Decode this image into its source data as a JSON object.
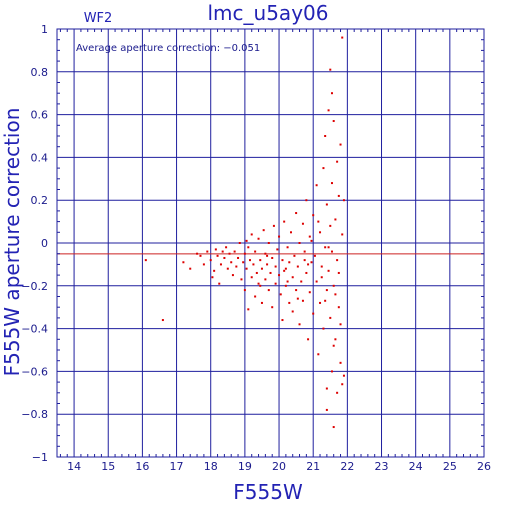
{
  "chart_data": {
    "type": "scatter",
    "title": "lmc_u5ay06",
    "panel_label": "WF2",
    "annotation": "Average aperture correction: −0.051",
    "xlabel": "F555W",
    "ylabel": "F555W aperture correction",
    "xlim": [
      13.5,
      26
    ],
    "ylim": [
      -1,
      1
    ],
    "xticks": [
      14,
      15,
      16,
      17,
      18,
      19,
      20,
      21,
      22,
      23,
      24,
      25,
      26
    ],
    "yticks": [
      -1,
      -0.8,
      -0.6,
      -0.4,
      -0.2,
      0,
      0.2,
      0.4,
      0.6,
      0.8,
      1
    ],
    "ytick_labels": [
      "−1",
      "−0.8",
      "−0.6",
      "−0.4",
      "−0.2",
      "0",
      "0.2",
      "0.4",
      "0.6",
      "0.8",
      "1"
    ],
    "grid": true,
    "reference_line": {
      "y": -0.051,
      "color": "#cc2222"
    },
    "colors": {
      "axes": "#1f1f9e",
      "points": "#dd0000",
      "mean_line": "#cc2222"
    },
    "series": [
      {
        "points": [
          [
            16.1,
            -0.08
          ],
          [
            16.6,
            -0.36
          ],
          [
            17.2,
            -0.09
          ],
          [
            17.4,
            -0.12
          ],
          [
            17.6,
            -0.05
          ],
          [
            17.7,
            -0.06
          ],
          [
            17.8,
            -0.1
          ],
          [
            17.9,
            -0.04
          ],
          [
            18.0,
            -0.08
          ],
          [
            18.1,
            -0.13
          ],
          [
            18.15,
            -0.03
          ],
          [
            18.2,
            -0.06
          ],
          [
            18.25,
            -0.19
          ],
          [
            18.3,
            -0.1
          ],
          [
            18.4,
            -0.07
          ],
          [
            18.45,
            -0.02
          ],
          [
            18.5,
            -0.12
          ],
          [
            18.55,
            -0.05
          ],
          [
            18.6,
            -0.09
          ],
          [
            18.65,
            -0.15
          ],
          [
            18.7,
            -0.04
          ],
          [
            18.75,
            -0.11
          ],
          [
            18.8,
            -0.07
          ],
          [
            18.85,
            0.0
          ],
          [
            18.9,
            -0.17
          ],
          [
            18.95,
            -0.09
          ],
          [
            19.0,
            -0.05
          ],
          [
            19.0,
            -0.22
          ],
          [
            19.05,
            -0.12
          ],
          [
            19.1,
            -0.02
          ],
          [
            19.1,
            -0.31
          ],
          [
            19.15,
            -0.08
          ],
          [
            19.2,
            -0.16
          ],
          [
            19.2,
            0.04
          ],
          [
            19.25,
            -0.1
          ],
          [
            19.3,
            -0.25
          ],
          [
            19.3,
            -0.04
          ],
          [
            19.35,
            -0.14
          ],
          [
            19.4,
            0.02
          ],
          [
            19.4,
            -0.19
          ],
          [
            19.45,
            -0.08
          ],
          [
            19.5,
            -0.12
          ],
          [
            19.5,
            -0.28
          ],
          [
            19.55,
            0.06
          ],
          [
            19.6,
            -0.05
          ],
          [
            19.6,
            -0.17
          ],
          [
            19.65,
            -0.1
          ],
          [
            19.7,
            -0.22
          ],
          [
            19.7,
            0.0
          ],
          [
            19.75,
            -0.14
          ],
          [
            19.8,
            -0.07
          ],
          [
            19.8,
            -0.3
          ],
          [
            19.85,
            0.08
          ],
          [
            19.9,
            -0.11
          ],
          [
            19.9,
            -0.19
          ],
          [
            19.95,
            -0.03
          ],
          [
            20.0,
            -0.15
          ],
          [
            20.0,
            0.03
          ],
          [
            20.05,
            -0.24
          ],
          [
            20.1,
            -0.08
          ],
          [
            20.1,
            -0.36
          ],
          [
            20.15,
            0.1
          ],
          [
            20.2,
            -0.12
          ],
          [
            20.2,
            -0.2
          ],
          [
            20.25,
            -0.02
          ],
          [
            20.3,
            -0.28
          ],
          [
            20.3,
            -0.09
          ],
          [
            20.35,
            0.05
          ],
          [
            20.4,
            -0.16
          ],
          [
            20.4,
            -0.32
          ],
          [
            20.45,
            -0.06
          ],
          [
            20.5,
            0.14
          ],
          [
            20.5,
            -0.22
          ],
          [
            20.55,
            -0.11
          ],
          [
            20.6,
            0.0
          ],
          [
            20.6,
            -0.38
          ],
          [
            20.65,
            -0.18
          ],
          [
            20.7,
            0.09
          ],
          [
            20.7,
            -0.27
          ],
          [
            20.75,
            -0.04
          ],
          [
            20.8,
            0.2
          ],
          [
            20.8,
            -0.14
          ],
          [
            20.85,
            -0.45
          ],
          [
            20.9,
            0.03
          ],
          [
            20.9,
            -0.23
          ],
          [
            20.95,
            -0.09
          ],
          [
            21.0,
            0.13
          ],
          [
            21.0,
            -0.33
          ],
          [
            21.05,
            -0.06
          ],
          [
            21.1,
            0.27
          ],
          [
            21.1,
            -0.18
          ],
          [
            21.15,
            -0.52
          ],
          [
            21.2,
            0.05
          ],
          [
            21.2,
            -0.28
          ],
          [
            21.25,
            -0.11
          ],
          [
            21.3,
            0.35
          ],
          [
            21.3,
            -0.4
          ],
          [
            21.35,
            -0.02
          ],
          [
            21.4,
            0.18
          ],
          [
            21.4,
            -0.22
          ],
          [
            21.4,
            -0.78
          ],
          [
            21.45,
            0.62
          ],
          [
            21.45,
            -0.13
          ],
          [
            21.5,
            0.81
          ],
          [
            21.5,
            -0.35
          ],
          [
            21.5,
            0.08
          ],
          [
            21.55,
            -0.6
          ],
          [
            21.55,
            0.28
          ],
          [
            21.6,
            0.57
          ],
          [
            21.6,
            -0.2
          ],
          [
            21.6,
            -0.86
          ],
          [
            21.65,
            0.11
          ],
          [
            21.65,
            -0.45
          ],
          [
            21.7,
            0.38
          ],
          [
            21.7,
            -0.08
          ],
          [
            21.7,
            -0.7
          ],
          [
            21.75,
            0.22
          ],
          [
            21.75,
            -0.3
          ],
          [
            21.8,
            0.46
          ],
          [
            21.8,
            -0.56
          ],
          [
            21.85,
            0.04
          ],
          [
            21.85,
            0.96
          ],
          [
            21.9,
            -0.62
          ],
          [
            21.9,
            0.2
          ],
          [
            20.15,
            -0.13
          ],
          [
            19.65,
            -0.06
          ],
          [
            20.85,
            -0.1
          ],
          [
            21.25,
            -0.16
          ],
          [
            20.55,
            -0.26
          ],
          [
            19.45,
            -0.2
          ],
          [
            20.95,
            0.01
          ],
          [
            21.15,
            0.1
          ],
          [
            21.55,
            -0.04
          ],
          [
            21.35,
            -0.27
          ],
          [
            18.35,
            -0.04
          ],
          [
            18.05,
            -0.16
          ],
          [
            19.05,
            0.01
          ],
          [
            20.25,
            -0.18
          ],
          [
            20.75,
            -0.08
          ],
          [
            21.75,
            -0.14
          ],
          [
            21.45,
            -0.02
          ],
          [
            21.65,
            -0.24
          ],
          [
            21.35,
            0.5
          ],
          [
            21.55,
            0.7
          ],
          [
            21.4,
            -0.68
          ],
          [
            21.6,
            -0.48
          ],
          [
            21.8,
            -0.38
          ],
          [
            21.85,
            -0.66
          ]
        ]
      }
    ]
  }
}
